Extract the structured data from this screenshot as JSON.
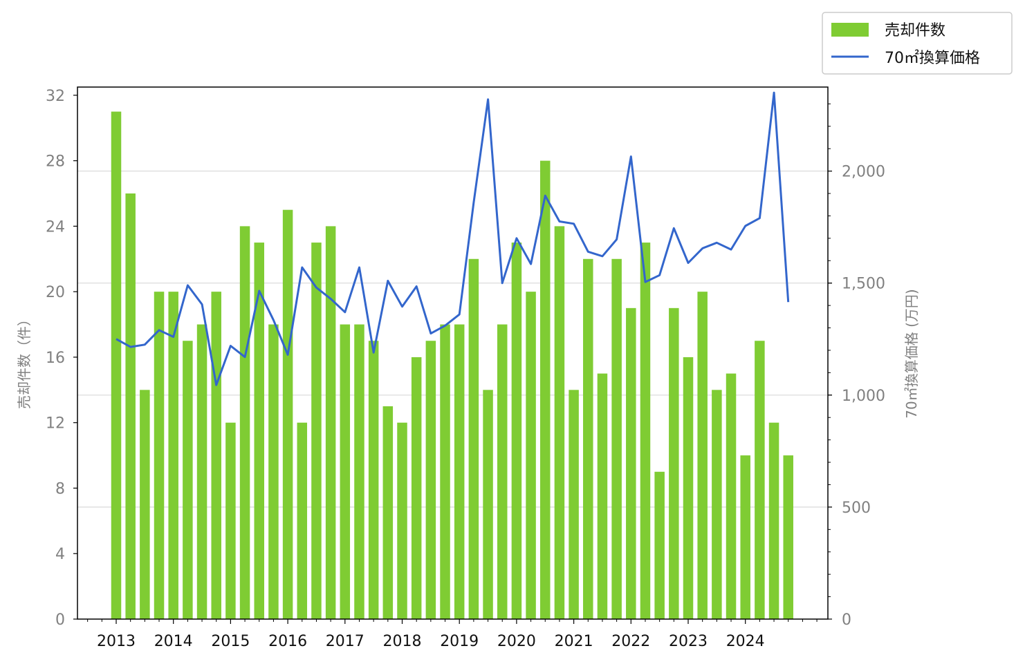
{
  "chart_data": {
    "type": "bar",
    "x_ticks": [
      "2013",
      "2014",
      "2015",
      "2016",
      "2017",
      "2018",
      "2019",
      "2020",
      "2021",
      "2022",
      "2023",
      "2024"
    ],
    "quarters_per_year": 4,
    "start_year": 2013,
    "y_left_label": "売却件数（件）",
    "y_right_label": "70㎡換算価格 (万円)",
    "ylim_left": [
      0,
      32.5
    ],
    "ylim_right": [
      0,
      2375
    ],
    "y_left_ticks": [
      0,
      4,
      8,
      12,
      16,
      20,
      24,
      28,
      32
    ],
    "y_right_ticks": [
      0,
      500,
      1000,
      1500,
      2000
    ],
    "y_right_tick_labels": [
      "0",
      "500",
      "1,000",
      "1,500",
      "2,000"
    ],
    "grid": "horizontal, right axis",
    "legend_position": "top-right, outside plot",
    "series": [
      {
        "name": "売却件数",
        "kind": "bar",
        "axis": "left",
        "color": "#7fcc33",
        "values": [
          31,
          26,
          14,
          20,
          20,
          17,
          18,
          20,
          12,
          24,
          23,
          18,
          25,
          12,
          23,
          24,
          18,
          18,
          17,
          13,
          12,
          16,
          17,
          18,
          18,
          22,
          14,
          18,
          23,
          20,
          28,
          24,
          14,
          22,
          15,
          22,
          19,
          23,
          9,
          19,
          16,
          20,
          14,
          15,
          10,
          17,
          12,
          10
        ]
      },
      {
        "name": "70㎡換算価格",
        "kind": "line",
        "axis": "right",
        "color": "#3366cc",
        "values": [
          1250,
          1215,
          1225,
          1290,
          1260,
          1490,
          1405,
          1045,
          1220,
          1170,
          1465,
          1335,
          1180,
          1570,
          1480,
          1430,
          1370,
          1570,
          1190,
          1510,
          1395,
          1485,
          1275,
          1310,
          1360,
          1860,
          2320,
          1500,
          1700,
          1585,
          1890,
          1775,
          1765,
          1640,
          1620,
          1695,
          2065,
          1505,
          1535,
          1745,
          1590,
          1655,
          1680,
          1650,
          1755,
          1790,
          2350,
          1415
        ]
      }
    ]
  }
}
